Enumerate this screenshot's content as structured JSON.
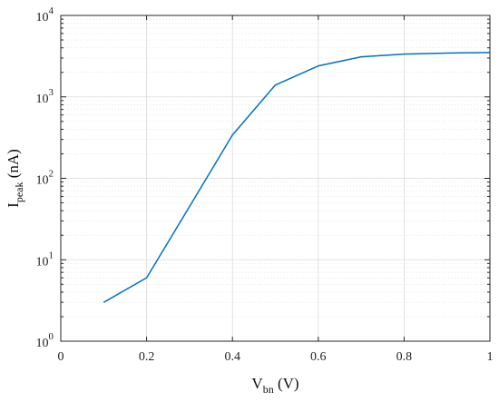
{
  "chart_data": {
    "type": "line",
    "x_scale": "linear",
    "y_scale": "log",
    "xlim": [
      0,
      1
    ],
    "ylim": [
      1,
      10000
    ],
    "x_ticks": [
      0,
      0.2,
      0.4,
      0.6,
      0.8,
      1
    ],
    "x_tick_labels": [
      "0",
      "0.2",
      "0.4",
      "0.6",
      "0.8",
      "1"
    ],
    "y_ticks": [
      1,
      10,
      100,
      1000,
      10000
    ],
    "y_tick_labels": [
      {
        "base": "10",
        "exp": "0"
      },
      {
        "base": "10",
        "exp": "1"
      },
      {
        "base": "10",
        "exp": "2"
      },
      {
        "base": "10",
        "exp": "3"
      },
      {
        "base": "10",
        "exp": "4"
      }
    ],
    "xlabel": {
      "main": "V",
      "sub": "bn",
      "rest": " (V)"
    },
    "ylabel": {
      "main": "I",
      "sub": "peak",
      "rest": " (nA)"
    },
    "grid": true,
    "series": [
      {
        "color": "#0072BD",
        "x": [
          0.1,
          0.2,
          0.3,
          0.4,
          0.5,
          0.6,
          0.7,
          0.8,
          0.9,
          1.0
        ],
        "y": [
          3,
          6,
          45,
          340,
          1400,
          2400,
          3100,
          3350,
          3450,
          3500
        ]
      }
    ]
  }
}
